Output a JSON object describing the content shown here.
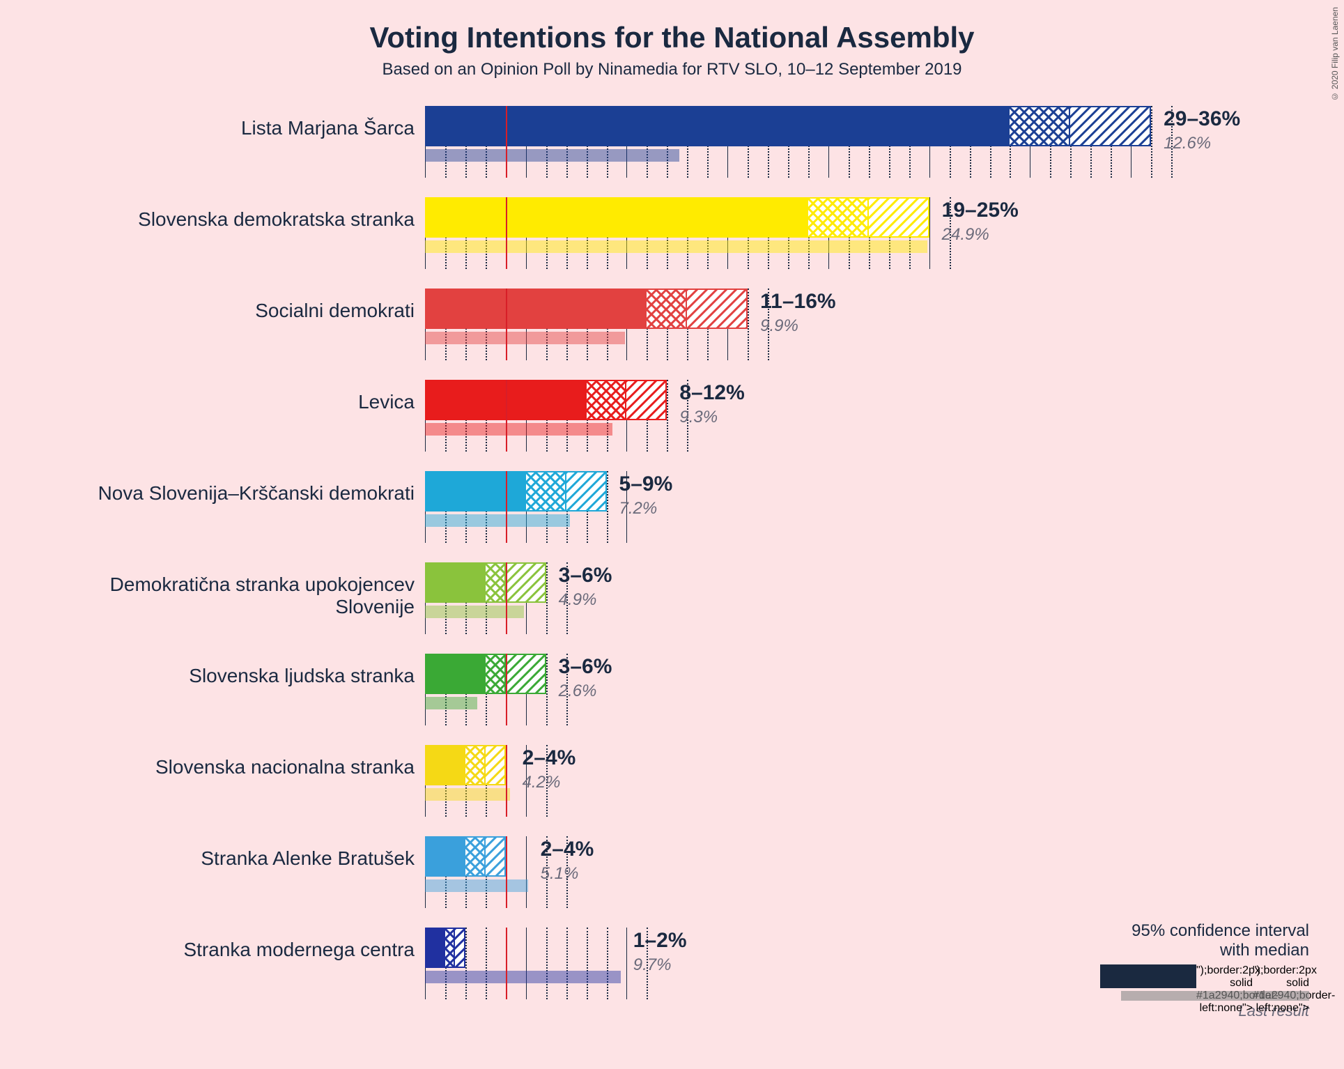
{
  "title": "Voting Intentions for the National Assembly",
  "subtitle": "Based on an Opinion Poll by Ninamedia for RTV SLO, 10–12 September 2019",
  "copyright": "© 2020 Filip van Laenen",
  "background_color": "#fde3e5",
  "text_color": "#1a2940",
  "threshold_pct": 4,
  "threshold_color": "#d81e28",
  "x_max": 38,
  "major_tick_step": 5,
  "minor_tick_step": 1,
  "legend": {
    "line1": "95% confidence interval",
    "line2": "with median",
    "line3": "Last result",
    "color": "#1a2940"
  },
  "parties": [
    {
      "name": "Lista Marjana Šarca",
      "color": "#1b3f94",
      "low": 29,
      "median": 32,
      "high": 36,
      "last": 12.6,
      "range_label": "29–36%",
      "last_label": "12.6%"
    },
    {
      "name": "Slovenska demokratska stranka",
      "color": "#ffeb00",
      "low": 19,
      "median": 22,
      "high": 25,
      "last": 24.9,
      "range_label": "19–25%",
      "last_label": "24.9%"
    },
    {
      "name": "Socialni demokrati",
      "color": "#e24140",
      "low": 11,
      "median": 13,
      "high": 16,
      "last": 9.9,
      "range_label": "11–16%",
      "last_label": "9.9%"
    },
    {
      "name": "Levica",
      "color": "#e81c1c",
      "low": 8,
      "median": 10,
      "high": 12,
      "last": 9.3,
      "range_label": "8–12%",
      "last_label": "9.3%"
    },
    {
      "name": "Nova Slovenija–Krščanski demokrati",
      "color": "#1ea8d8",
      "low": 5,
      "median": 7,
      "high": 9,
      "last": 7.2,
      "range_label": "5–9%",
      "last_label": "7.2%"
    },
    {
      "name": "Demokratična stranka upokojencev Slovenije",
      "color": "#8ac33c",
      "low": 3,
      "median": 4,
      "high": 6,
      "last": 4.9,
      "range_label": "3–6%",
      "last_label": "4.9%"
    },
    {
      "name": "Slovenska ljudska stranka",
      "color": "#3aa935",
      "low": 3,
      "median": 4,
      "high": 6,
      "last": 2.6,
      "range_label": "3–6%",
      "last_label": "2.6%"
    },
    {
      "name": "Slovenska nacionalna stranka",
      "color": "#f5d915",
      "low": 2,
      "median": 3,
      "high": 4,
      "last": 4.2,
      "range_label": "2–4%",
      "last_label": "4.2%"
    },
    {
      "name": "Stranka Alenke Bratušek",
      "color": "#3aa0dc",
      "low": 2,
      "median": 3,
      "high": 4,
      "last": 5.1,
      "range_label": "2–4%",
      "last_label": "5.1%"
    },
    {
      "name": "Stranka modernega centra",
      "color": "#2030a0",
      "low": 1,
      "median": 1.5,
      "high": 2,
      "last": 9.7,
      "range_label": "1–2%",
      "last_label": "9.7%"
    }
  ]
}
